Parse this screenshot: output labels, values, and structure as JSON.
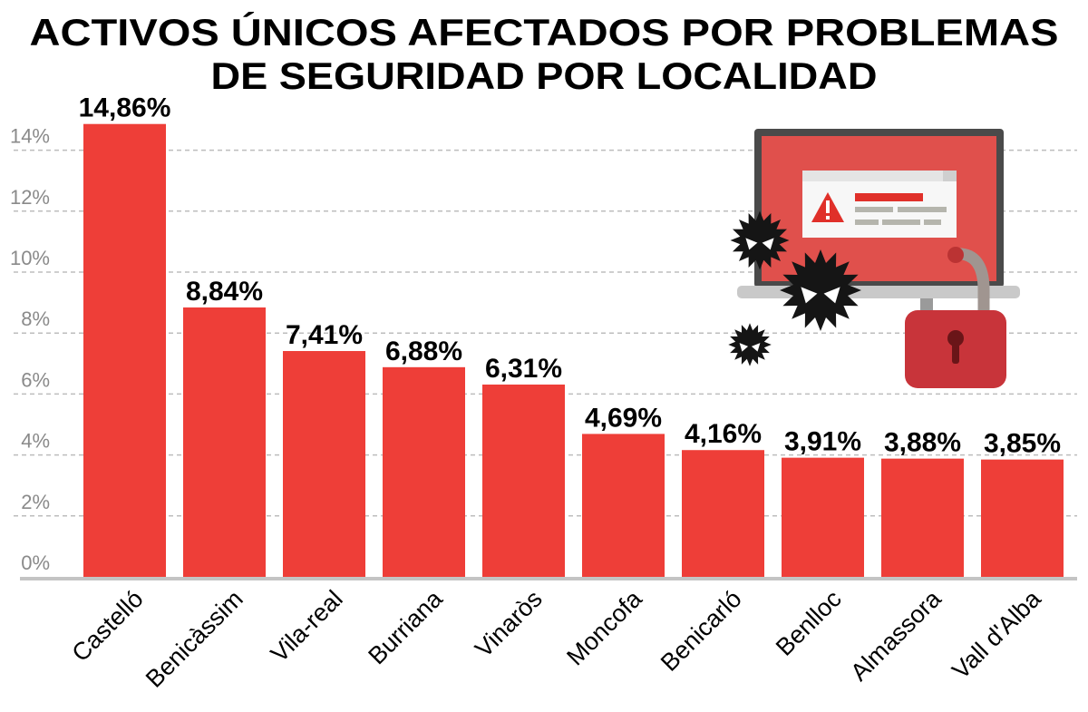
{
  "chart_data": {
    "type": "bar",
    "title": [
      "ACTIVOS ÚNICOS AFECTADOS POR PROBLEMAS",
      "DE SEGURIDAD POR LOCALIDAD"
    ],
    "categories": [
      "Castelló",
      "Benicàssim",
      "Vila-real",
      "Burriana",
      "Vinaròs",
      "Moncofa",
      "Benicarló",
      "Benlloc",
      "Almassora",
      "Vall d'Alba"
    ],
    "values": [
      14.86,
      8.84,
      7.41,
      6.88,
      6.31,
      4.69,
      4.16,
      3.91,
      3.88,
      3.85
    ],
    "data_labels": [
      "14,86%",
      "8,84%",
      "7,41%",
      "6,88%",
      "6,31%",
      "4,69%",
      "4,16%",
      "3,91%",
      "3,88%",
      "3,85%"
    ],
    "y_ticks": [
      0,
      2,
      4,
      6,
      8,
      10,
      12,
      14
    ],
    "y_tick_labels": [
      "0%",
      "2%",
      "4%",
      "6%",
      "8%",
      "10%",
      "12%",
      "14%"
    ],
    "ylim": [
      0,
      15
    ],
    "xlabel": "",
    "ylabel": "",
    "grid": "horizontal dashed",
    "legend": "none",
    "colors": {
      "bar": "#ee3e38",
      "grid": "#bdbdbd",
      "baseline": "#c4c4c4"
    }
  },
  "illustration": {
    "icons": [
      "laptop-warning-icon",
      "virus-icon",
      "padlock-open-icon"
    ]
  }
}
